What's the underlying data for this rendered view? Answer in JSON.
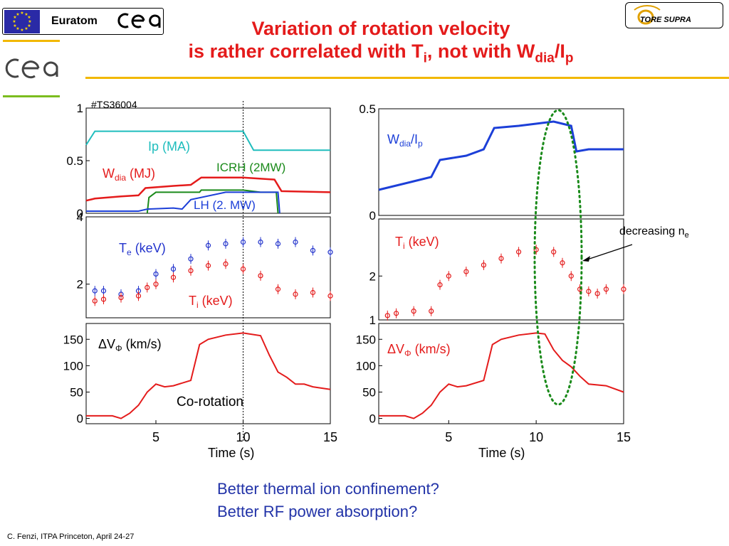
{
  "header": {
    "euratom_label": "Euratom",
    "toresupra_label": "TORE SUPRA",
    "title_line1": "Variation of rotation velocity",
    "title_line2_prefix": "is rather correlated with T",
    "title_line2_sub1": "i",
    "title_line2_mid": ", not with W",
    "title_line2_sub2": "dia",
    "title_line2_suffix": "/I",
    "title_line2_sub3": "p"
  },
  "footer": "C. Fenzi, ITPA Princeton, April 24-27",
  "questions": [
    "Better thermal ion confinement?",
    "Better RF power absorption?"
  ],
  "colors": {
    "title": "#e41b1b",
    "ip": "#1fbdbd",
    "wdia": "#e41b1b",
    "icrh": "#1a8a1a",
    "lh": "#1c3fd8",
    "te": "#2233cc",
    "ti": "#e41b1b",
    "v": "#e41b1b",
    "annotation_ellipse": "#1a8a1a",
    "questions": "#2233a8"
  },
  "chart_data": [
    {
      "type": "line",
      "shot_label": "#TS36004",
      "xlim": [
        1,
        15
      ],
      "ylim": [
        0,
        1
      ],
      "yticks": [
        "0",
        "0.5",
        "1"
      ],
      "x_marker": 10,
      "series": [
        {
          "name": "Ip (MA)",
          "points": [
            [
              1,
              0.65
            ],
            [
              1.5,
              0.78
            ],
            [
              2,
              0.78
            ],
            [
              6,
              0.78
            ],
            [
              10,
              0.78
            ],
            [
              10.6,
              0.6
            ],
            [
              15,
              0.6
            ]
          ]
        },
        {
          "name": "W_dia (MJ)",
          "points": [
            [
              1,
              0.12
            ],
            [
              1.5,
              0.14
            ],
            [
              3,
              0.16
            ],
            [
              4,
              0.17
            ],
            [
              4.4,
              0.24
            ],
            [
              6,
              0.26
            ],
            [
              7,
              0.27
            ],
            [
              7.6,
              0.34
            ],
            [
              10,
              0.34
            ],
            [
              11.8,
              0.32
            ],
            [
              12.2,
              0.21
            ],
            [
              15,
              0.2
            ]
          ]
        },
        {
          "name": "ICRH (2MW)",
          "points": [
            [
              4.5,
              0
            ],
            [
              4.6,
              0.15
            ],
            [
              5,
              0.2
            ],
            [
              6,
              0.2
            ],
            [
              7.5,
              0.2
            ],
            [
              7.6,
              0.22
            ],
            [
              10,
              0.22
            ],
            [
              11,
              0.2
            ],
            [
              11.9,
              0.2
            ],
            [
              12,
              0
            ]
          ]
        },
        {
          "name": "LH (2. MW)",
          "points": [
            [
              1,
              0.02
            ],
            [
              4,
              0.02
            ],
            [
              4.5,
              0.04
            ],
            [
              6,
              0.05
            ],
            [
              6.5,
              0.04
            ],
            [
              7,
              0.13
            ],
            [
              9,
              0.2
            ],
            [
              12,
              0.2
            ],
            [
              12.1,
              0
            ]
          ]
        }
      ],
      "labels": {
        "ip": "Ip (MA)",
        "wdia_main": "W",
        "wdia_sub": "dia",
        "wdia_unit": " (MJ)",
        "icrh": "ICRH (2MW)",
        "lh": "LH (2. MW)"
      }
    },
    {
      "type": "scatter",
      "xlim": [
        1,
        15
      ],
      "ylim": [
        1,
        4
      ],
      "yticks": [
        "2",
        "4"
      ],
      "series": [
        {
          "name": "Te (keV)",
          "points": [
            [
              1.5,
              1.8
            ],
            [
              2,
              1.8
            ],
            [
              3,
              1.7
            ],
            [
              4,
              1.8
            ],
            [
              5,
              2.3
            ],
            [
              6,
              2.45
            ],
            [
              7,
              2.75
            ],
            [
              8,
              3.15
            ],
            [
              9,
              3.2
            ],
            [
              10,
              3.25
            ],
            [
              11,
              3.25
            ],
            [
              12,
              3.2
            ],
            [
              13,
              3.25
            ],
            [
              14,
              3.0
            ],
            [
              15,
              2.95
            ]
          ]
        },
        {
          "name": "Ti (keV)",
          "points": [
            [
              1.5,
              1.5
            ],
            [
              2,
              1.55
            ],
            [
              3,
              1.6
            ],
            [
              4,
              1.65
            ],
            [
              4.5,
              1.9
            ],
            [
              5,
              2.0
            ],
            [
              6,
              2.2
            ],
            [
              7,
              2.4
            ],
            [
              8,
              2.55
            ],
            [
              9,
              2.6
            ],
            [
              10,
              2.45
            ],
            [
              11,
              2.25
            ],
            [
              12,
              1.85
            ],
            [
              13,
              1.7
            ],
            [
              14,
              1.75
            ],
            [
              15,
              1.65
            ]
          ]
        }
      ],
      "labels": {
        "te_main": "T",
        "te_sub": "e",
        "te_unit": " (keV)",
        "ti_main": "T",
        "ti_sub": "i",
        "ti_unit": " (keV)"
      }
    },
    {
      "type": "line",
      "xlim": [
        1,
        15
      ],
      "ylim": [
        -10,
        180
      ],
      "yticks": [
        "0",
        "50",
        "100",
        "150"
      ],
      "xticks": [
        "5",
        "10",
        "15"
      ],
      "xlabel": "Time (s)",
      "series": [
        {
          "name": "ΔVΦ (km/s)",
          "points": [
            [
              1,
              5
            ],
            [
              2.5,
              5
            ],
            [
              3,
              0
            ],
            [
              3.5,
              10
            ],
            [
              4,
              25
            ],
            [
              4.5,
              50
            ],
            [
              5,
              65
            ],
            [
              5.5,
              60
            ],
            [
              6,
              62
            ],
            [
              7,
              72
            ],
            [
              7.5,
              140
            ],
            [
              8,
              150
            ],
            [
              9,
              158
            ],
            [
              10,
              162
            ],
            [
              11,
              157
            ],
            [
              11.5,
              120
            ],
            [
              12,
              88
            ],
            [
              12.5,
              78
            ],
            [
              13,
              65
            ],
            [
              13.5,
              65
            ],
            [
              14,
              60
            ],
            [
              15,
              55
            ]
          ]
        }
      ],
      "labels": {
        "v_delta": "ΔV",
        "v_sub": "Φ",
        "v_unit": " (km/s)",
        "corotation": "Co-rotation"
      }
    },
    {
      "type": "line",
      "xlim": [
        1,
        15
      ],
      "ylim": [
        0,
        0.5
      ],
      "yticks": [
        "0",
        "0.5"
      ],
      "series": [
        {
          "name": "Wdia/Ip",
          "points": [
            [
              1,
              0.12
            ],
            [
              3,
              0.16
            ],
            [
              4,
              0.18
            ],
            [
              4.5,
              0.26
            ],
            [
              6,
              0.28
            ],
            [
              7,
              0.31
            ],
            [
              7.6,
              0.41
            ],
            [
              9,
              0.42
            ],
            [
              10,
              0.43
            ],
            [
              11,
              0.44
            ],
            [
              12,
              0.42
            ],
            [
              12.3,
              0.3
            ],
            [
              13,
              0.31
            ],
            [
              15,
              0.31
            ]
          ]
        }
      ],
      "labels": {
        "main": "W",
        "sub1": "dia",
        "slash": "/I",
        "sub2": "p"
      }
    },
    {
      "type": "scatter",
      "xlim": [
        1,
        15
      ],
      "ylim": [
        1,
        3.3
      ],
      "yticks": [
        "1",
        "2"
      ],
      "series": [
        {
          "name": "Ti (keV)",
          "points": [
            [
              1.5,
              1.1
            ],
            [
              2,
              1.15
            ],
            [
              3,
              1.2
            ],
            [
              4,
              1.2
            ],
            [
              4.5,
              1.8
            ],
            [
              5,
              2.0
            ],
            [
              6,
              2.1
            ],
            [
              7,
              2.25
            ],
            [
              8,
              2.4
            ],
            [
              9,
              2.55
            ],
            [
              10,
              2.6
            ],
            [
              11,
              2.55
            ],
            [
              11.5,
              2.3
            ],
            [
              12,
              2.0
            ],
            [
              12.5,
              1.7
            ],
            [
              13,
              1.65
            ],
            [
              13.5,
              1.6
            ],
            [
              14,
              1.7
            ],
            [
              15,
              1.7
            ]
          ]
        }
      ],
      "labels": {
        "main": "T",
        "sub": "i",
        "unit": " (keV)",
        "annotation_main": "decreasing n",
        "annotation_sub": "e"
      }
    },
    {
      "type": "line",
      "xlim": [
        1,
        15
      ],
      "ylim": [
        -10,
        180
      ],
      "yticks": [
        "0",
        "50",
        "100",
        "150"
      ],
      "xticks": [
        "5",
        "10",
        "15"
      ],
      "xlabel": "Time (s)",
      "series": [
        {
          "name": "ΔVΦ (km/s)",
          "points": [
            [
              1,
              5
            ],
            [
              2.5,
              5
            ],
            [
              3,
              0
            ],
            [
              3.5,
              10
            ],
            [
              4,
              25
            ],
            [
              4.5,
              50
            ],
            [
              5,
              65
            ],
            [
              5.5,
              60
            ],
            [
              6,
              62
            ],
            [
              7,
              72
            ],
            [
              7.5,
              140
            ],
            [
              8,
              150
            ],
            [
              9,
              158
            ],
            [
              10,
              162
            ],
            [
              10.5,
              160
            ],
            [
              11,
              130
            ],
            [
              11.5,
              110
            ],
            [
              12,
              98
            ],
            [
              12.5,
              80
            ],
            [
              13,
              65
            ],
            [
              14,
              62
            ],
            [
              15,
              50
            ]
          ]
        }
      ],
      "labels": {
        "v_delta": "ΔV",
        "v_sub": "Φ",
        "v_unit": " (km/s)"
      }
    }
  ]
}
